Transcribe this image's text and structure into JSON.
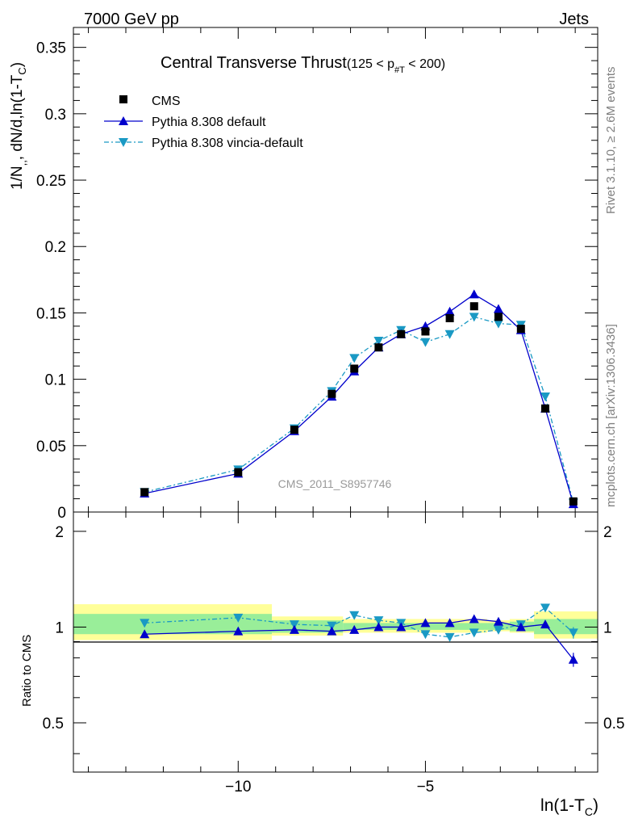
{
  "header": {
    "energy_label": "7000 GeV pp",
    "process_label": "Jets",
    "plot_title": "Central Transverse Thrust",
    "plot_title_cut": "(125 < p",
    "plot_title_cut_sub": "#T",
    "plot_title_cut_end": " < 200)",
    "watermark": "CMS_2011_S8957746",
    "side_top": "Rivet 3.1.10, ≥ 2.6M events",
    "side_bottom": "mcplots.cern.ch [arXiv:1306.3436]"
  },
  "axes": {
    "main_ylabel_a": "1/N",
    "main_ylabel_b": ", dN/d,ln(1-T",
    "main_ylabel_sub_a": ",,",
    "main_ylabel_sub_b": "C",
    "main_ylabel_end": ")",
    "ratio_ylabel": "Ratio to CMS",
    "xlabel": "ln(1-T",
    "xlabel_sub": "C",
    "xlabel_end": ")"
  },
  "legend": [
    {
      "label": "CMS",
      "color": "#000000",
      "marker": "square",
      "line": "none"
    },
    {
      "label": "Pythia 8.308 default",
      "color": "#0000cc",
      "marker": "triangle-up",
      "line": "solid"
    },
    {
      "label": "Pythia 8.308 vincia-default",
      "color": "#1a99c4",
      "marker": "triangle-down",
      "line": "dashdot"
    }
  ],
  "chart_data": [
    {
      "type": "line",
      "panel": "main",
      "xlim": [
        -14.4,
        -0.4
      ],
      "ylim": [
        0,
        0.365
      ],
      "xticks": [
        -10,
        -5
      ],
      "yticks": [
        0,
        0.05,
        0.1,
        0.15,
        0.2,
        0.25,
        0.3,
        0.35
      ],
      "ytick_labels": [
        "0",
        "0.05",
        "0.1",
        "0.15",
        "0.2",
        "0.25",
        "0.3",
        "0.35"
      ],
      "x": [
        -12.5,
        -10.0,
        -8.5,
        -7.5,
        -6.9,
        -6.25,
        -5.65,
        -5.0,
        -4.35,
        -3.7,
        -3.05,
        -2.45,
        -1.8,
        -1.05
      ],
      "series": [
        {
          "name": "CMS",
          "values": [
            0.015,
            0.03,
            0.062,
            0.089,
            0.108,
            0.124,
            0.134,
            0.136,
            0.146,
            0.155,
            0.147,
            0.138,
            0.078,
            0.008
          ]
        },
        {
          "name": "Pythia 8.308 default",
          "values": [
            0.014,
            0.029,
            0.061,
            0.087,
            0.106,
            0.124,
            0.134,
            0.14,
            0.151,
            0.164,
            0.153,
            0.137,
            0.078,
            0.006
          ]
        },
        {
          "name": "Pythia 8.308 vincia-default",
          "values": [
            0.015,
            0.032,
            0.063,
            0.091,
            0.116,
            0.129,
            0.137,
            0.128,
            0.134,
            0.147,
            0.142,
            0.141,
            0.087,
            0.007
          ]
        }
      ]
    },
    {
      "type": "line",
      "panel": "ratio",
      "xlim": [
        -14.4,
        -0.4
      ],
      "ylim": [
        0.35,
        2.3
      ],
      "yticks": [
        0.5,
        1,
        2
      ],
      "ytick_labels": [
        "0.5",
        "1",
        "2"
      ],
      "x": [
        -12.5,
        -10.0,
        -8.5,
        -7.5,
        -6.9,
        -6.25,
        -5.65,
        -5.0,
        -4.35,
        -3.7,
        -3.05,
        -2.45,
        -1.8,
        -1.05
      ],
      "series": [
        {
          "name": "Pythia 8.308 default",
          "values": [
            0.95,
            0.97,
            0.98,
            0.97,
            0.98,
            1.0,
            1.0,
            1.03,
            1.03,
            1.06,
            1.04,
            1.0,
            1.02,
            0.79
          ]
        },
        {
          "name": "Pythia 8.308 vincia-default",
          "values": [
            1.03,
            1.07,
            1.02,
            1.01,
            1.09,
            1.05,
            1.03,
            0.95,
            0.93,
            0.96,
            0.98,
            1.02,
            1.15,
            0.96
          ]
        }
      ],
      "bands": [
        {
          "name": "yellow",
          "color": "#ffff99",
          "segments": [
            [
              -14.4,
              -9.1,
              0.91,
              1.18
            ],
            [
              -9.1,
              -7.2,
              0.94,
              1.08
            ],
            [
              -7.2,
              -3.35,
              0.96,
              1.06
            ],
            [
              -3.35,
              -2.75,
              0.97,
              1.05
            ],
            [
              -2.75,
              -2.1,
              0.96,
              1.06
            ],
            [
              -2.1,
              -0.4,
              0.92,
              1.12
            ]
          ]
        },
        {
          "name": "green",
          "color": "#99ee99",
          "segments": [
            [
              -14.4,
              -9.1,
              0.95,
              1.1
            ],
            [
              -9.1,
              -7.2,
              0.96,
              1.05
            ],
            [
              -7.2,
              -3.35,
              0.98,
              1.03
            ],
            [
              -3.35,
              -2.75,
              0.98,
              1.03
            ],
            [
              -2.75,
              -2.1,
              0.97,
              1.04
            ],
            [
              -2.1,
              -0.4,
              0.95,
              1.06
            ]
          ]
        }
      ]
    }
  ]
}
